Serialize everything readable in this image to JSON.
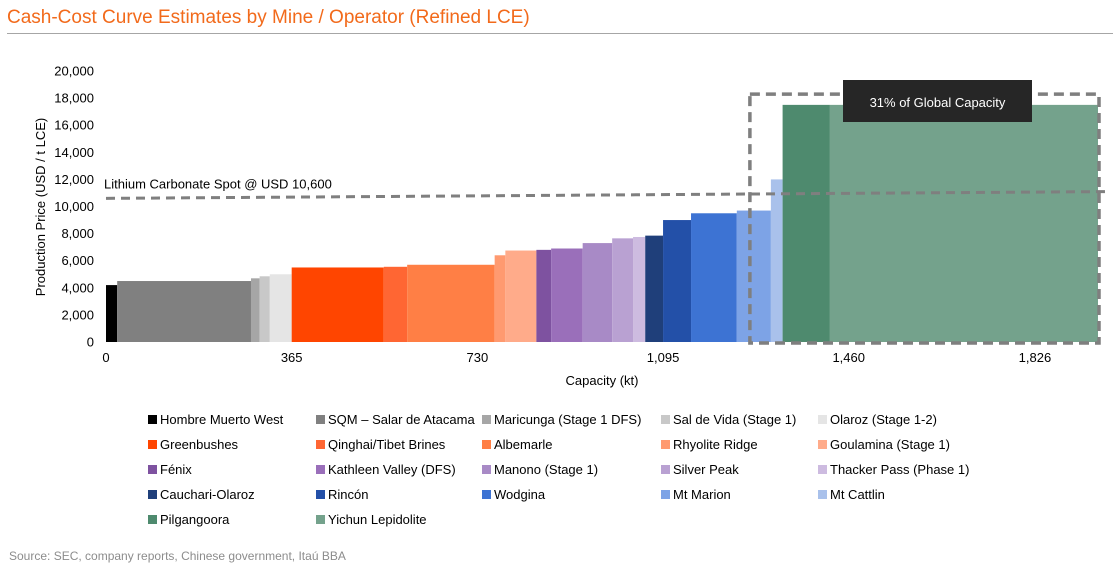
{
  "title": "Cash-Cost Curve Estimates by Mine / Operator (Refined LCE)",
  "source": "Source: SEC, company reports, Chinese government, Itaú BBA",
  "chart_data": {
    "type": "bar",
    "subtype": "cost-curve",
    "xlabel": "Capacity (kt)",
    "ylabel": "Production Price (USD / t LCE)",
    "xlim": [
      0,
      1950
    ],
    "ylim": [
      0,
      20000
    ],
    "x_ticks": [
      0,
      365,
      730,
      1095,
      1460,
      1826
    ],
    "x_tick_labels": [
      "0",
      "365",
      "730",
      "1,095",
      "1,460",
      "1,826"
    ],
    "y_ticks": [
      0,
      2000,
      4000,
      6000,
      8000,
      10000,
      12000,
      14000,
      16000,
      18000,
      20000
    ],
    "y_tick_labels": [
      "0",
      "2,000",
      "4,000",
      "6,000",
      "8,000",
      "10,000",
      "12,000",
      "14,000",
      "16,000",
      "18,000",
      "20,000"
    ],
    "series": [
      {
        "name": "Hombre Muerto West",
        "start": 0,
        "end": 22,
        "value": 4200,
        "color": "#000000"
      },
      {
        "name": "SQM – Salar de Atacama",
        "start": 22,
        "end": 285,
        "value": 4500,
        "color": "#808080"
      },
      {
        "name": "Maricunga (Stage 1 DFS)",
        "start": 285,
        "end": 302,
        "value": 4700,
        "color": "#a6a6a6"
      },
      {
        "name": "Sal de Vida (Stage 1)",
        "start": 302,
        "end": 322,
        "value": 4850,
        "color": "#c8c8c8"
      },
      {
        "name": "Olaroz (Stage 1-2)",
        "start": 322,
        "end": 365,
        "value": 5000,
        "color": "#e5e5e5"
      },
      {
        "name": "Greenbushes",
        "start": 365,
        "end": 546,
        "value": 5500,
        "color": "#ff4500"
      },
      {
        "name": "Qinghai/Tibet Brines",
        "start": 546,
        "end": 592,
        "value": 5550,
        "color": "#ff6633"
      },
      {
        "name": "Albemarle",
        "start": 592,
        "end": 764,
        "value": 5700,
        "color": "#ff7f45"
      },
      {
        "name": "Rhyolite Ridge",
        "start": 764,
        "end": 785,
        "value": 6400,
        "color": "#ff9a70"
      },
      {
        "name": "Goulamina (Stage 1)",
        "start": 785,
        "end": 846,
        "value": 6750,
        "color": "#ffab8a"
      },
      {
        "name": "Fénix",
        "start": 846,
        "end": 875,
        "value": 6800,
        "color": "#7e52a0"
      },
      {
        "name": "Kathleen Valley (DFS)",
        "start": 875,
        "end": 937,
        "value": 6900,
        "color": "#9a6fba"
      },
      {
        "name": "Manono (Stage 1)",
        "start": 937,
        "end": 995,
        "value": 7300,
        "color": "#a88ac6"
      },
      {
        "name": "Silver Peak",
        "start": 995,
        "end": 1036,
        "value": 7650,
        "color": "#b9a1d2"
      },
      {
        "name": "Thacker Pass (Phase 1)",
        "start": 1036,
        "end": 1060,
        "value": 7750,
        "color": "#cdbbe0"
      },
      {
        "name": "Cauchari-Olaroz",
        "start": 1060,
        "end": 1095,
        "value": 7850,
        "color": "#1f3f7a"
      },
      {
        "name": "Rincón",
        "start": 1095,
        "end": 1150,
        "value": 9000,
        "color": "#2350a8"
      },
      {
        "name": "Wodgina",
        "start": 1150,
        "end": 1240,
        "value": 9500,
        "color": "#3d73d3"
      },
      {
        "name": "Mt Marion",
        "start": 1240,
        "end": 1307,
        "value": 9700,
        "color": "#7da3e6"
      },
      {
        "name": "Mt Cattlin",
        "start": 1307,
        "end": 1330,
        "value": 12000,
        "color": "#a9c1eb"
      },
      {
        "name": "Pilgangoora",
        "start": 1330,
        "end": 1423,
        "value": 17500,
        "color": "#4e8a6e"
      },
      {
        "name": "Yichun Lepidolite",
        "start": 1423,
        "end": 1950,
        "value": 17500,
        "color": "#74a28c"
      }
    ],
    "reference_line": {
      "label": "Lithium Carbonate Spot @ USD 10,600",
      "value": 10600
    },
    "annotation": {
      "text": "31% of Global Capacity",
      "x_start": 1307,
      "x_end": 1950
    },
    "legend_position": "bottom"
  }
}
